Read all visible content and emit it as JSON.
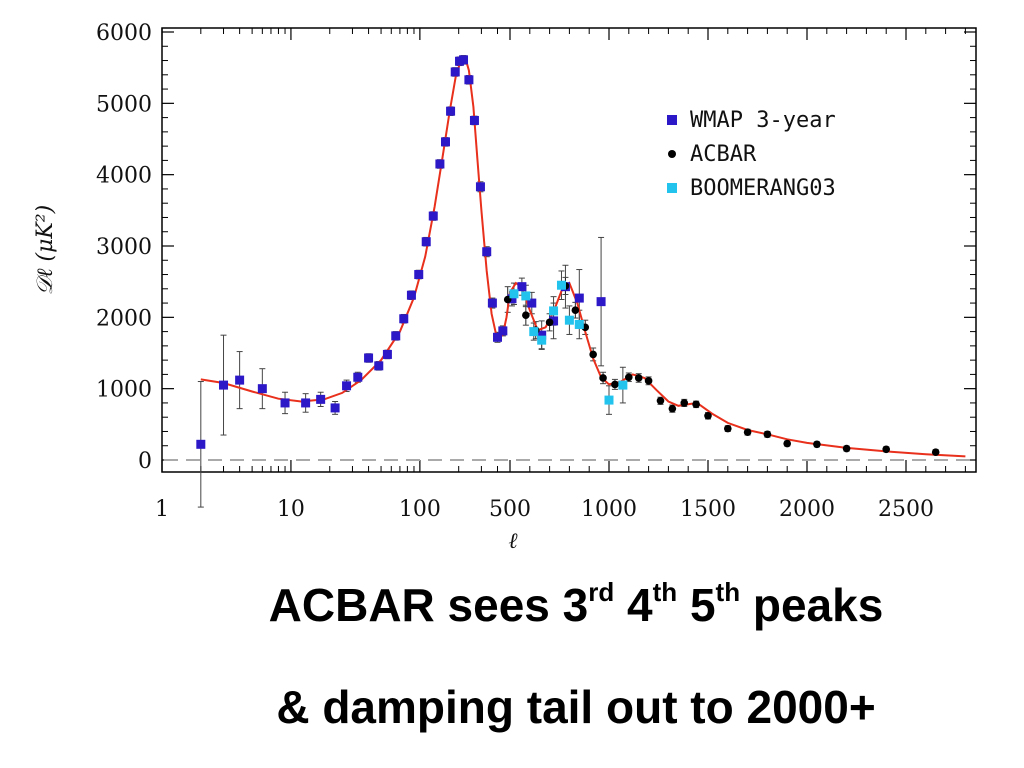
{
  "chart_data": {
    "type": "scatter",
    "xlabel": "ℓ",
    "ylabel": "𝒟ℓ (μK²)",
    "x_ticks": [
      "1",
      "10",
      "100",
      "500",
      "1000",
      "1500",
      "2000",
      "2500"
    ],
    "y_ticks": [
      "0",
      "1000",
      "2000",
      "3000",
      "4000",
      "5000",
      "6000"
    ],
    "ylim": [
      -200,
      6100
    ],
    "xscale": "log below 500, linear above 500",
    "legend_position": "top-right",
    "series": [
      {
        "name": "WMAP 3-year",
        "color": "#2d18c8",
        "marker": "square",
        "points": [
          {
            "x": 2,
            "y": 220,
            "err": 880
          },
          {
            "x": 3,
            "y": 1050,
            "err": 700
          },
          {
            "x": 4,
            "y": 1120,
            "err": 400
          },
          {
            "x": 6,
            "y": 1000,
            "err": 280
          },
          {
            "x": 9,
            "y": 800,
            "err": 150
          },
          {
            "x": 13,
            "y": 800,
            "err": 130
          },
          {
            "x": 17,
            "y": 850,
            "err": 100
          },
          {
            "x": 22,
            "y": 730,
            "err": 90
          },
          {
            "x": 27,
            "y": 1040,
            "err": 80
          },
          {
            "x": 33,
            "y": 1160,
            "err": 70
          },
          {
            "x": 40,
            "y": 1430,
            "err": 60
          },
          {
            "x": 48,
            "y": 1320,
            "err": 60
          },
          {
            "x": 56,
            "y": 1480,
            "err": 60
          },
          {
            "x": 65,
            "y": 1740,
            "err": 60
          },
          {
            "x": 75,
            "y": 1980,
            "err": 60
          },
          {
            "x": 86,
            "y": 2310,
            "err": 60
          },
          {
            "x": 98,
            "y": 2600,
            "err": 60
          },
          {
            "x": 112,
            "y": 3060,
            "err": 60
          },
          {
            "x": 127,
            "y": 3420,
            "err": 60
          },
          {
            "x": 143,
            "y": 4150,
            "err": 60
          },
          {
            "x": 158,
            "y": 4460,
            "err": 60
          },
          {
            "x": 173,
            "y": 4890,
            "err": 60
          },
          {
            "x": 188,
            "y": 5440,
            "err": 60
          },
          {
            "x": 203,
            "y": 5590,
            "err": 60
          },
          {
            "x": 218,
            "y": 5610,
            "err": 60
          },
          {
            "x": 240,
            "y": 5330,
            "err": 60
          },
          {
            "x": 265,
            "y": 4760,
            "err": 60
          },
          {
            "x": 295,
            "y": 3830,
            "err": 70
          },
          {
            "x": 330,
            "y": 2920,
            "err": 70
          },
          {
            "x": 365,
            "y": 2200,
            "err": 70
          },
          {
            "x": 400,
            "y": 1720,
            "err": 70
          },
          {
            "x": 440,
            "y": 1810,
            "err": 70
          },
          {
            "x": 510,
            "y": 2260,
            "err": 100
          },
          {
            "x": 560,
            "y": 2430,
            "err": 120
          },
          {
            "x": 610,
            "y": 2200,
            "err": 150
          },
          {
            "x": 660,
            "y": 1750,
            "err": 200
          },
          {
            "x": 720,
            "y": 1950,
            "err": 250
          },
          {
            "x": 780,
            "y": 2430,
            "err": 300
          },
          {
            "x": 850,
            "y": 2270,
            "err": 400
          },
          {
            "x": 960,
            "y": 2220,
            "err": 900
          }
        ]
      },
      {
        "name": "ACBAR",
        "color": "#000000",
        "marker": "circle",
        "points": [
          {
            "x": 480,
            "y": 2250,
            "err": 180
          },
          {
            "x": 580,
            "y": 2030,
            "err": 140
          },
          {
            "x": 630,
            "y": 1820,
            "err": 120
          },
          {
            "x": 700,
            "y": 1930,
            "err": 120
          },
          {
            "x": 780,
            "y": 2440,
            "err": 120
          },
          {
            "x": 830,
            "y": 2100,
            "err": 110
          },
          {
            "x": 880,
            "y": 1860,
            "err": 100
          },
          {
            "x": 920,
            "y": 1480,
            "err": 90
          },
          {
            "x": 970,
            "y": 1150,
            "err": 80
          },
          {
            "x": 1030,
            "y": 1060,
            "err": 70
          },
          {
            "x": 1100,
            "y": 1160,
            "err": 60
          },
          {
            "x": 1150,
            "y": 1150,
            "err": 60
          },
          {
            "x": 1200,
            "y": 1110,
            "err": 55
          },
          {
            "x": 1260,
            "y": 830,
            "err": 50
          },
          {
            "x": 1320,
            "y": 720,
            "err": 50
          },
          {
            "x": 1380,
            "y": 800,
            "err": 50
          },
          {
            "x": 1440,
            "y": 780,
            "err": 45
          },
          {
            "x": 1500,
            "y": 620,
            "err": 45
          },
          {
            "x": 1600,
            "y": 440,
            "err": 40
          },
          {
            "x": 1700,
            "y": 390,
            "err": 40
          },
          {
            "x": 1800,
            "y": 360,
            "err": 40
          },
          {
            "x": 1900,
            "y": 230,
            "err": 35
          },
          {
            "x": 2050,
            "y": 220,
            "err": 35
          },
          {
            "x": 2200,
            "y": 160,
            "err": 35
          },
          {
            "x": 2400,
            "y": 150,
            "err": 35
          },
          {
            "x": 2650,
            "y": 110,
            "err": 35
          }
        ]
      },
      {
        "name": "BOOMERANG03",
        "color": "#22c4ee",
        "marker": "square",
        "points": [
          {
            "x": 520,
            "y": 2330,
            "err": 150
          },
          {
            "x": 580,
            "y": 2300,
            "err": 150
          },
          {
            "x": 620,
            "y": 1800,
            "err": 120
          },
          {
            "x": 660,
            "y": 1680,
            "err": 120
          },
          {
            "x": 720,
            "y": 2090,
            "err": 200
          },
          {
            "x": 760,
            "y": 2450,
            "err": 200
          },
          {
            "x": 800,
            "y": 1960,
            "err": 200
          },
          {
            "x": 850,
            "y": 1900,
            "err": 200
          },
          {
            "x": 1000,
            "y": 840,
            "err": 200
          },
          {
            "x": 1070,
            "y": 1050,
            "err": 250
          }
        ]
      }
    ],
    "model_curve": {
      "color": "#e8301c",
      "points": [
        [
          2,
          1130
        ],
        [
          3,
          1080
        ],
        [
          5,
          960
        ],
        [
          8,
          860
        ],
        [
          12,
          820
        ],
        [
          18,
          850
        ],
        [
          25,
          940
        ],
        [
          35,
          1120
        ],
        [
          50,
          1400
        ],
        [
          70,
          1800
        ],
        [
          90,
          2280
        ],
        [
          110,
          2850
        ],
        [
          130,
          3550
        ],
        [
          150,
          4250
        ],
        [
          170,
          4880
        ],
        [
          190,
          5380
        ],
        [
          210,
          5620
        ],
        [
          225,
          5640
        ],
        [
          240,
          5460
        ],
        [
          260,
          4950
        ],
        [
          280,
          4200
        ],
        [
          300,
          3500
        ],
        [
          330,
          2650
        ],
        [
          360,
          2050
        ],
        [
          390,
          1760
        ],
        [
          410,
          1700
        ],
        [
          440,
          1760
        ],
        [
          470,
          2000
        ],
        [
          500,
          2350
        ],
        [
          530,
          2480
        ],
        [
          560,
          2420
        ],
        [
          600,
          2100
        ],
        [
          640,
          1820
        ],
        [
          680,
          1860
        ],
        [
          720,
          2080
        ],
        [
          760,
          2370
        ],
        [
          800,
          2480
        ],
        [
          840,
          2200
        ],
        [
          880,
          1800
        ],
        [
          920,
          1420
        ],
        [
          960,
          1160
        ],
        [
          1000,
          1060
        ],
        [
          1060,
          1100
        ],
        [
          1120,
          1200
        ],
        [
          1180,
          1150
        ],
        [
          1240,
          980
        ],
        [
          1300,
          820
        ],
        [
          1350,
          760
        ],
        [
          1420,
          790
        ],
        [
          1460,
          770
        ],
        [
          1520,
          650
        ],
        [
          1600,
          520
        ],
        [
          1700,
          420
        ],
        [
          1800,
          360
        ],
        [
          1900,
          290
        ],
        [
          2000,
          240
        ],
        [
          2200,
          170
        ],
        [
          2400,
          120
        ],
        [
          2600,
          80
        ],
        [
          2800,
          50
        ],
        [
          2950,
          30
        ]
      ]
    },
    "zero_line": {
      "y": 0,
      "style": "dashed",
      "color": "#aaaaaa"
    }
  },
  "caption": {
    "line1_a": "ACBAR sees 3",
    "line1_sup1": "rd",
    "line1_b": " 4",
    "line1_sup2": "th",
    "line1_c": " 5",
    "line1_sup3": "th",
    "line1_d": " peaks",
    "line2": "& damping tail out to 2000+"
  }
}
